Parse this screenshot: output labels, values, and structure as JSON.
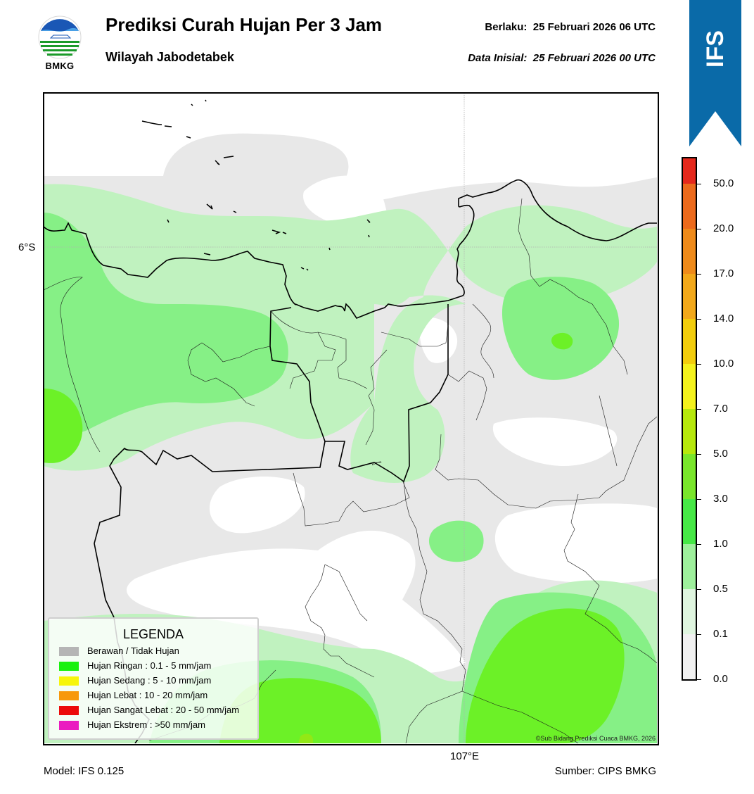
{
  "header": {
    "logo_text": "BMKG",
    "title": "Prediksi Curah Hujan Per 3 Jam",
    "subtitle": "Wilayah Jabodetabek",
    "valid_label": "Berlaku:  25 Februari 2026 06 UTC",
    "init_label": "Data Inisial:  25 Februari 2026 00 UTC",
    "badge": "IFS",
    "badge_color": "#0a6aa8"
  },
  "map": {
    "lat_label": "6°S",
    "lon_label": "107°E",
    "copyright": "©Sub Bidang Prediksi Cuaca BMKG, 2026",
    "colors": {
      "no_rain": "#e8e8e8",
      "very_light": "#c0f2bf",
      "light": "#86f086",
      "moderate": "#6cf127",
      "heavy": "#92e816"
    }
  },
  "legend": {
    "title": "LEGENDA",
    "items": [
      {
        "label": "Berawan / Tidak Hujan",
        "color": "#b5b5b5"
      },
      {
        "label": "Hujan Ringan : 0.1 - 5 mm/jam",
        "color": "#19f10e"
      },
      {
        "label": "Hujan Sedang : 5 - 10 mm/jam",
        "color": "#f7f50a"
      },
      {
        "label": "Hujan Lebat : 10 - 20 mm/jam",
        "color": "#f7980b"
      },
      {
        "label": "Hujan Sangat Lebat : 20 - 50 mm/jam",
        "color": "#ec0a0a"
      },
      {
        "label": "Hujan Ekstrem : >50 mm/jam",
        "color": "#ea1cc0"
      }
    ]
  },
  "colorbar": {
    "ticks": [
      "0.0",
      "0.1",
      "0.5",
      "1.0",
      "3.0",
      "5.0",
      "7.0",
      "10.0",
      "14.0",
      "17.0",
      "20.0",
      "50.0"
    ],
    "colors": [
      "#f1f1f1",
      "#dff5df",
      "#9ef09c",
      "#46e846",
      "#79e62b",
      "#b6e80c",
      "#f4f21c",
      "#f2cd0c",
      "#f2a81a",
      "#ee8a1a",
      "#ec6a1c",
      "#e5281c",
      "#e618c8"
    ]
  },
  "footer": {
    "model": "Model: IFS 0.125",
    "source": "Sumber: CIPS BMKG"
  }
}
